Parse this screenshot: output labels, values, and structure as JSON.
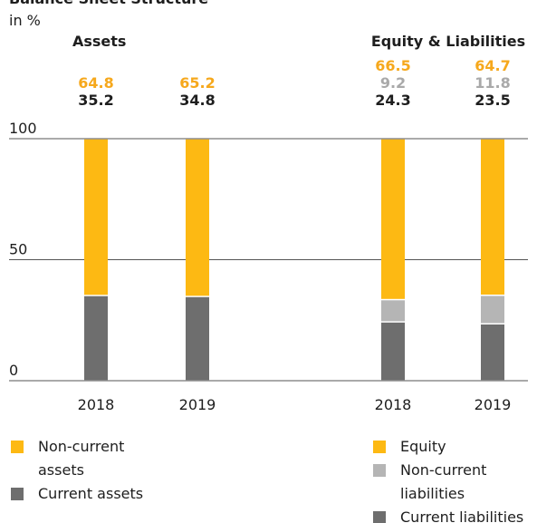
{
  "title": "Balance Sheet Structure",
  "unit": "in %",
  "chart_data": [
    {
      "type": "stacked_bar",
      "title": "Assets",
      "categories": [
        "2018",
        "2019"
      ],
      "ylim": [
        0,
        100
      ],
      "yticks": [
        0,
        50,
        100
      ],
      "grid": true,
      "series": [
        {
          "name": "Non-current assets",
          "color": "#fdb913",
          "label_color": "#f6a81c",
          "values": [
            64.8,
            65.2
          ]
        },
        {
          "name": "Current assets",
          "color": "#6e6e6e",
          "label_color": "#1e1e1e",
          "values": [
            35.2,
            34.8
          ]
        }
      ]
    },
    {
      "type": "stacked_bar",
      "title": "Equity & Liabilities",
      "categories": [
        "2018",
        "2019"
      ],
      "series": [
        {
          "name": "Equity",
          "color": "#fdb913",
          "label_color": "#f6a81c",
          "values": [
            66.5,
            64.7
          ]
        },
        {
          "name": "Non-current liabilities",
          "color": "#b5b5b5",
          "label_color": "#a9a9a9",
          "values": [
            9.2,
            11.8
          ]
        },
        {
          "name": "Current liabilities",
          "color": "#6e6e6e",
          "label_color": "#1e1e1e",
          "values": [
            24.3,
            23.5
          ]
        }
      ]
    }
  ]
}
